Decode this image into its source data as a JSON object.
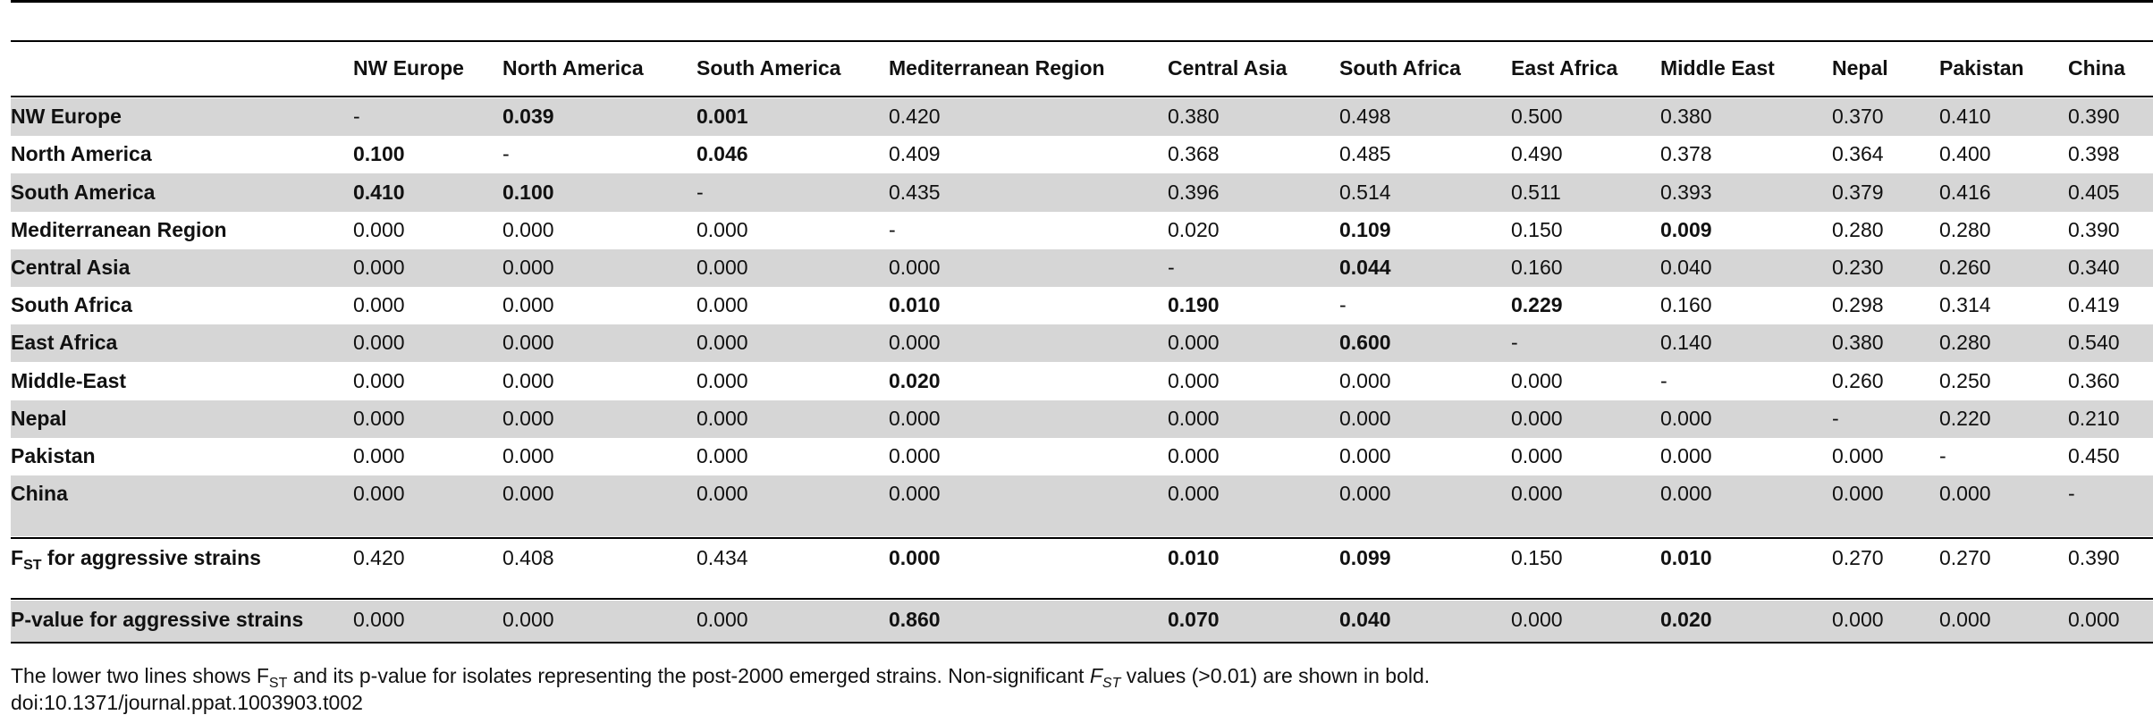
{
  "table": {
    "header": [
      "NW Europe",
      "North America",
      "South America",
      "Mediterranean Region",
      "Central Asia",
      "South Africa",
      "East Africa",
      "Middle East",
      "Nepal",
      "Pakistan",
      "China"
    ],
    "rows": [
      {
        "label": "NW Europe",
        "cells": [
          "-",
          "0.039",
          "0.001",
          "0.420",
          "0.380",
          "0.498",
          "0.500",
          "0.380",
          "0.370",
          "0.410",
          "0.390"
        ],
        "bold": [
          1,
          2
        ]
      },
      {
        "label": "North America",
        "cells": [
          "0.100",
          "-",
          "0.046",
          "0.409",
          "0.368",
          "0.485",
          "0.490",
          "0.378",
          "0.364",
          "0.400",
          "0.398"
        ],
        "bold": [
          0,
          2
        ]
      },
      {
        "label": "South America",
        "cells": [
          "0.410",
          "0.100",
          "-",
          "0.435",
          "0.396",
          "0.514",
          "0.511",
          "0.393",
          "0.379",
          "0.416",
          "0.405"
        ],
        "bold": [
          0,
          1
        ]
      },
      {
        "label": "Mediterranean Region",
        "cells": [
          "0.000",
          "0.000",
          "0.000",
          "-",
          "0.020",
          "0.109",
          "0.150",
          "0.009",
          "0.280",
          "0.280",
          "0.390"
        ],
        "bold": [
          5,
          7
        ]
      },
      {
        "label": "Central Asia",
        "cells": [
          "0.000",
          "0.000",
          "0.000",
          "0.000",
          "-",
          "0.044",
          "0.160",
          "0.040",
          "0.230",
          "0.260",
          "0.340"
        ],
        "bold": [
          5
        ]
      },
      {
        "label": "South Africa",
        "cells": [
          "0.000",
          "0.000",
          "0.000",
          "0.010",
          "0.190",
          "-",
          "0.229",
          "0.160",
          "0.298",
          "0.314",
          "0.419"
        ],
        "bold": [
          3,
          4,
          6
        ]
      },
      {
        "label": "East Africa",
        "cells": [
          "0.000",
          "0.000",
          "0.000",
          "0.000",
          "0.000",
          "0.600",
          "-",
          "0.140",
          "0.380",
          "0.280",
          "0.540"
        ],
        "bold": [
          5
        ]
      },
      {
        "label": "Middle-East",
        "cells": [
          "0.000",
          "0.000",
          "0.000",
          "0.020",
          "0.000",
          "0.000",
          "0.000",
          "-",
          "0.260",
          "0.250",
          "0.360"
        ],
        "bold": [
          3
        ]
      },
      {
        "label": "Nepal",
        "cells": [
          "0.000",
          "0.000",
          "0.000",
          "0.000",
          "0.000",
          "0.000",
          "0.000",
          "0.000",
          "-",
          "0.220",
          "0.210"
        ],
        "bold": []
      },
      {
        "label": "Pakistan",
        "cells": [
          "0.000",
          "0.000",
          "0.000",
          "0.000",
          "0.000",
          "0.000",
          "0.000",
          "0.000",
          "0.000",
          "-",
          "0.450"
        ],
        "bold": []
      },
      {
        "label": "China",
        "cells": [
          "0.000",
          "0.000",
          "0.000",
          "0.000",
          "0.000",
          "0.000",
          "0.000",
          "0.000",
          "0.000",
          "0.000",
          "-"
        ],
        "bold": []
      }
    ],
    "summary_rows": [
      {
        "label_parts": [
          {
            "text": "F"
          },
          {
            "text": "ST",
            "style": "sub"
          },
          {
            "text": " for aggressive strains"
          }
        ],
        "cells": [
          "0.420",
          "0.408",
          "0.434",
          "0.000",
          "0.010",
          "0.099",
          "0.150",
          "0.010",
          "0.270",
          "0.270",
          "0.390"
        ],
        "bold": [
          3,
          4,
          5,
          7
        ]
      },
      {
        "label_parts": [
          {
            "text": "P-value for aggressive strains"
          }
        ],
        "cells": [
          "0.000",
          "0.000",
          "0.000",
          "0.860",
          "0.070",
          "0.040",
          "0.000",
          "0.020",
          "0.000",
          "0.000",
          "0.000"
        ],
        "bold": [
          3,
          4,
          5,
          7
        ]
      }
    ]
  },
  "caption": {
    "parts": [
      {
        "text": "The lower two lines shows F"
      },
      {
        "text": "ST",
        "style": "sub"
      },
      {
        "text": " and its p-value for isolates representing the post-2000 emerged strains. Non-significant "
      },
      {
        "text": "F",
        "style": "italic"
      },
      {
        "text": "ST",
        "style": "sub-italic"
      },
      {
        "text": " values (>0.01) are shown in bold."
      }
    ],
    "doi": "doi:10.1371/journal.ppat.1003903.t002"
  }
}
